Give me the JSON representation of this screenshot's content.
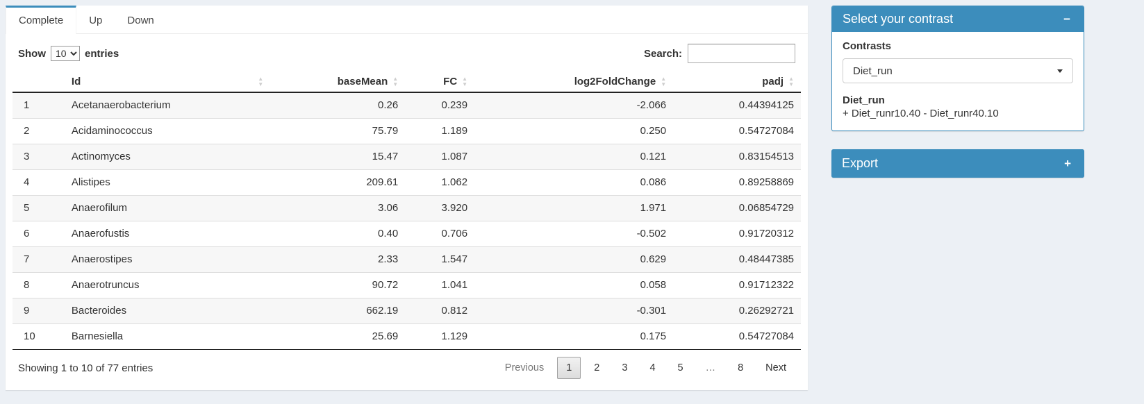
{
  "tabs": [
    {
      "label": "Complete",
      "active": true
    },
    {
      "label": "Up",
      "active": false
    },
    {
      "label": "Down",
      "active": false
    }
  ],
  "table_controls": {
    "show_label": "Show",
    "page_length": "10",
    "entries_label": "entries",
    "search_label": "Search:",
    "search_value": ""
  },
  "table": {
    "columns": [
      "Id",
      "baseMean",
      "FC",
      "log2FoldChange",
      "padj"
    ],
    "rows": [
      {
        "n": "1",
        "id": "Acetanaerobacterium",
        "baseMean": "0.26",
        "fc": "0.239",
        "log2fc": "-2.066",
        "padj": "0.44394125"
      },
      {
        "n": "2",
        "id": "Acidaminococcus",
        "baseMean": "75.79",
        "fc": "1.189",
        "log2fc": "0.250",
        "padj": "0.54727084"
      },
      {
        "n": "3",
        "id": "Actinomyces",
        "baseMean": "15.47",
        "fc": "1.087",
        "log2fc": "0.121",
        "padj": "0.83154513"
      },
      {
        "n": "4",
        "id": "Alistipes",
        "baseMean": "209.61",
        "fc": "1.062",
        "log2fc": "0.086",
        "padj": "0.89258869"
      },
      {
        "n": "5",
        "id": "Anaerofilum",
        "baseMean": "3.06",
        "fc": "3.920",
        "log2fc": "1.971",
        "padj": "0.06854729"
      },
      {
        "n": "6",
        "id": "Anaerofustis",
        "baseMean": "0.40",
        "fc": "0.706",
        "log2fc": "-0.502",
        "padj": "0.91720312"
      },
      {
        "n": "7",
        "id": "Anaerostipes",
        "baseMean": "2.33",
        "fc": "1.547",
        "log2fc": "0.629",
        "padj": "0.48447385"
      },
      {
        "n": "8",
        "id": "Anaerotruncus",
        "baseMean": "90.72",
        "fc": "1.041",
        "log2fc": "0.058",
        "padj": "0.91712322"
      },
      {
        "n": "9",
        "id": "Bacteroides",
        "baseMean": "662.19",
        "fc": "0.812",
        "log2fc": "-0.301",
        "padj": "0.26292721"
      },
      {
        "n": "10",
        "id": "Barnesiella",
        "baseMean": "25.69",
        "fc": "1.129",
        "log2fc": "0.175",
        "padj": "0.54727084"
      }
    ],
    "info": "Showing 1 to 10 of 77 entries",
    "pagination": {
      "previous": "Previous",
      "pages": [
        "1",
        "2",
        "3",
        "4",
        "5",
        "…",
        "8"
      ],
      "current": "1",
      "next": "Next"
    }
  },
  "contrast_box": {
    "title": "Select your contrast",
    "collapse_icon": "−",
    "contrasts_label": "Contrasts",
    "selected_contrast": "Diet_run",
    "contrast_name": "Diet_run",
    "contrast_formula": "+ Diet_runr10.40 - Diet_runr40.10"
  },
  "export_box": {
    "title": "Export",
    "expand_icon": "+"
  },
  "colors": {
    "primary": "#3c8dbc",
    "page_bg": "#ecf0f5"
  }
}
